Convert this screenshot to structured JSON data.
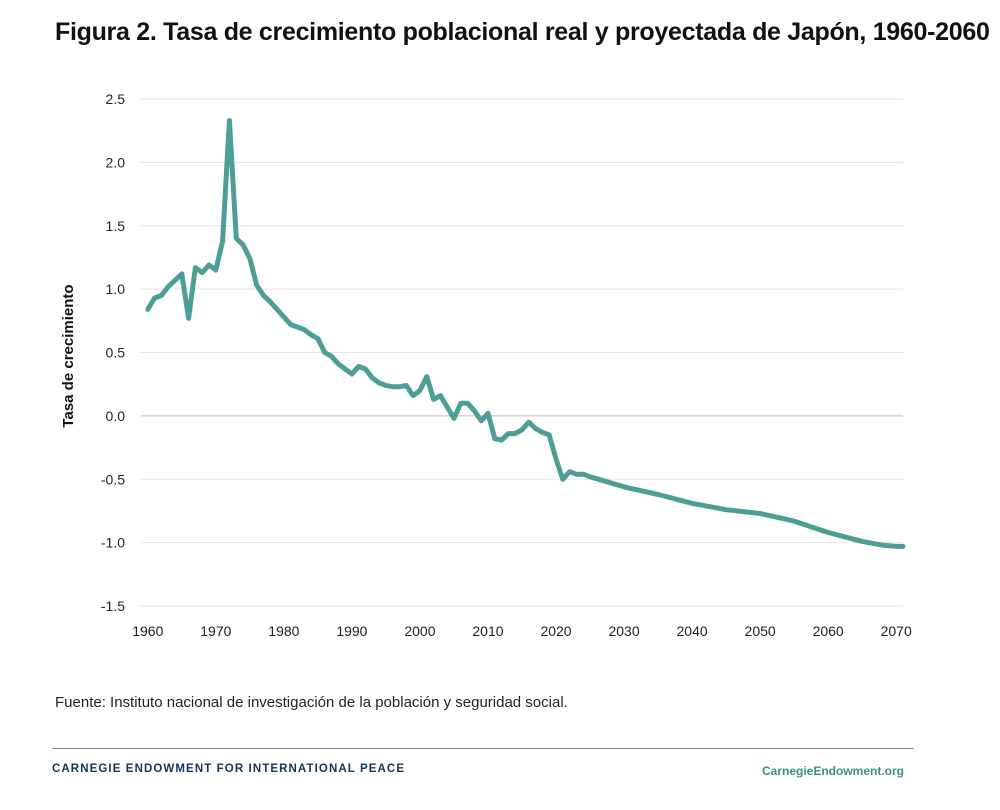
{
  "title": "Figura 2. Tasa de crecimiento poblacional real y proyectada de Japón, 1960-2060",
  "source": "Fuente: Instituto nacional de investigación de la población y seguridad social.",
  "footer": {
    "organization": "CARNEGIE ENDOWMENT FOR INTERNATIONAL PEACE",
    "website": "CarnegieEndowment.org"
  },
  "colors": {
    "series": "#4d9e96",
    "grid": "#e3e3e3",
    "zero_line": "#bbbbbb",
    "organization": "#12355b",
    "website": "#3a8f8a"
  },
  "chart_data": {
    "type": "line",
    "title": "Figura 2. Tasa de crecimiento poblacional real y proyectada de Japón, 1960-2060",
    "xlabel": "",
    "ylabel": "Tasa de crecimiento",
    "xlim": [
      1959,
      2071
    ],
    "ylim": [
      -1.5,
      2.5
    ],
    "x_ticks": [
      1960,
      1970,
      1980,
      1990,
      2000,
      2010,
      2020,
      2030,
      2040,
      2050,
      2060,
      2070
    ],
    "x_tick_labels": [
      "1960",
      "1970",
      "1980",
      "1990",
      "2000",
      "2010",
      "2020",
      "2030",
      "2040",
      "2050",
      "2060",
      "2070"
    ],
    "y_ticks": [
      2.5,
      2.0,
      1.5,
      1.0,
      0.5,
      0.0,
      -0.5,
      -1.0,
      -1.5
    ],
    "y_tick_labels": [
      "2.5",
      "2.0",
      "1.5",
      "1.0",
      "0.5",
      "0.0",
      "-0.5",
      "-1.0",
      "-1.5"
    ],
    "grid": true,
    "series": [
      {
        "name": "Tasa de crecimiento",
        "x": [
          1960,
          1961,
          1962,
          1963,
          1964,
          1965,
          1966,
          1967,
          1968,
          1969,
          1970,
          1971,
          1972,
          1973,
          1974,
          1975,
          1976,
          1977,
          1978,
          1979,
          1980,
          1981,
          1982,
          1983,
          1984,
          1985,
          1986,
          1987,
          1988,
          1989,
          1990,
          1991,
          1992,
          1993,
          1994,
          1995,
          1996,
          1997,
          1998,
          1999,
          2000,
          2001,
          2002,
          2003,
          2004,
          2005,
          2006,
          2007,
          2008,
          2009,
          2010,
          2011,
          2012,
          2013,
          2014,
          2015,
          2016,
          2017,
          2018,
          2019,
          2020,
          2021,
          2022,
          2023,
          2024,
          2025,
          2030,
          2035,
          2040,
          2045,
          2050,
          2055,
          2060,
          2065,
          2068,
          2070,
          2071
        ],
        "values": [
          0.84,
          0.93,
          0.95,
          1.02,
          1.07,
          1.12,
          0.77,
          1.17,
          1.13,
          1.19,
          1.15,
          1.38,
          2.33,
          1.4,
          1.35,
          1.24,
          1.03,
          0.95,
          0.9,
          0.84,
          0.78,
          0.72,
          0.7,
          0.68,
          0.64,
          0.61,
          0.5,
          0.47,
          0.41,
          0.37,
          0.33,
          0.39,
          0.37,
          0.3,
          0.26,
          0.24,
          0.23,
          0.23,
          0.24,
          0.16,
          0.2,
          0.31,
          0.13,
          0.16,
          0.07,
          -0.02,
          0.1,
          0.1,
          0.04,
          -0.04,
          0.02,
          -0.18,
          -0.19,
          -0.14,
          -0.14,
          -0.11,
          -0.05,
          -0.1,
          -0.13,
          -0.15,
          -0.34,
          -0.5,
          -0.44,
          -0.46,
          -0.46,
          -0.48,
          -0.56,
          -0.62,
          -0.69,
          -0.74,
          -0.77,
          -0.83,
          -0.92,
          -0.99,
          -1.02,
          -1.03,
          -1.03
        ]
      }
    ]
  }
}
